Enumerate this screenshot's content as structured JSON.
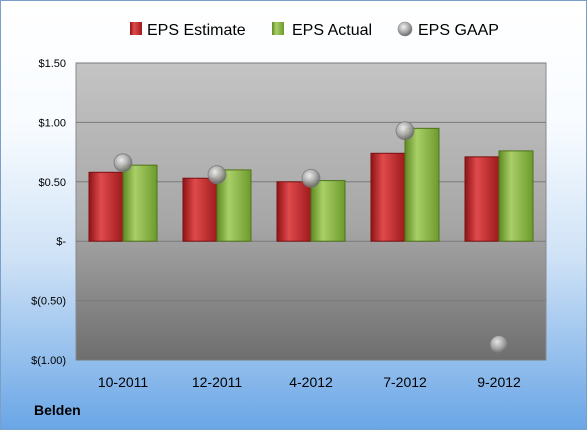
{
  "company": "Belden",
  "chart_data": {
    "type": "bar",
    "categories": [
      "10-2011",
      "12-2011",
      "4-2012",
      "7-2012",
      "9-2012"
    ],
    "series": [
      {
        "name": "EPS Estimate",
        "kind": "bar",
        "color": "#c0282b",
        "values": [
          0.58,
          0.53,
          0.5,
          0.74,
          0.71
        ]
      },
      {
        "name": "EPS Actual",
        "kind": "bar",
        "color": "#8ab04a",
        "values": [
          0.64,
          0.6,
          0.51,
          0.95,
          0.76
        ]
      },
      {
        "name": "EPS GAAP",
        "kind": "marker",
        "color": "#a8a8a8",
        "values": [
          0.66,
          0.56,
          0.53,
          0.93,
          -0.87
        ]
      }
    ],
    "ylim": [
      -1.0,
      1.5
    ],
    "yticks": [
      1.5,
      1.0,
      0.5,
      0,
      -0.5,
      -1.0
    ],
    "ytick_labels": [
      "$1.50",
      "$1.00",
      "$0.50",
      "$-",
      "$(0.50)",
      "$(1.00)"
    ],
    "legend": "top",
    "grid": true
  }
}
